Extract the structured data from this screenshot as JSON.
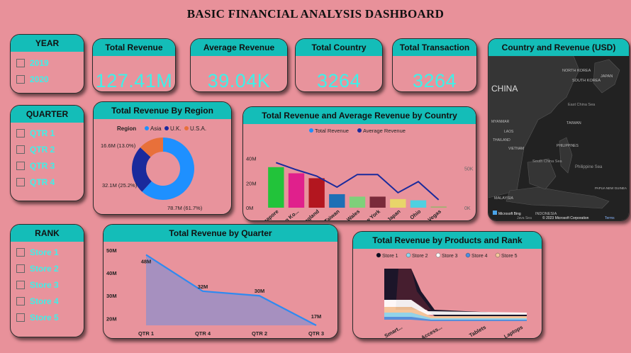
{
  "dashboard_title": "BASIC FINANCIAL  ANALYSIS DASHBOARD",
  "slicers": {
    "year": {
      "title": "YEAR",
      "items": [
        "2019",
        "2020"
      ]
    },
    "quarter": {
      "title": "QUARTER",
      "items": [
        "QTR 1",
        "QTR 2",
        "QTR 3",
        "QTR 4"
      ]
    },
    "rank": {
      "title": "RANK",
      "items": [
        "Store 1",
        "Store 2",
        "Store 3",
        "Store 4",
        "Store 5"
      ]
    }
  },
  "kpis": [
    {
      "title": "Total Revenue",
      "value": "127.41M"
    },
    {
      "title": "Average Revenue",
      "value": "39.04K"
    },
    {
      "title": "Total Country",
      "value": "3264"
    },
    {
      "title": "Total Transaction",
      "value": "3264"
    }
  ],
  "map": {
    "title": "Country and Revenue (USD)",
    "labels": [
      "CHINA",
      "NORTH KOREA",
      "SOUTH KOREA",
      "JAPAN",
      "TAIWAN",
      "East China Sea",
      "South China Sea",
      "Philippine Sea",
      "MALAYSIA",
      "INDONESIA",
      "Java Sea",
      "THAILAND",
      "VIETNAM",
      "LAOS",
      "MYANMAR",
      "PHILIPPINES",
      "PAPUA NEW GUINEA"
    ],
    "bing": "Microsoft Bing",
    "copyright": "© 2023 Microsoft Corporation",
    "terms": "Terms"
  },
  "region_chart": {
    "title": "Total Revenue By Region",
    "legend_title": "Region",
    "colors": {
      "Asia": "#1e90ff",
      "U.K.": "#1a2a9c",
      "U.S.A.": "#e8703a"
    },
    "chart_data": {
      "type": "pie",
      "categories": [
        "Asia",
        "U.K.",
        "U.S.A."
      ],
      "values": [
        78.7,
        32.1,
        16.6
      ],
      "percent": [
        61.7,
        25.2,
        13.0
      ],
      "labels": [
        "78.7M (61.7%)",
        "32.1M (25.2%)",
        "16.6M (13.0%)"
      ]
    }
  },
  "country_chart": {
    "title": "Total Revenue and Average Revenue by Country",
    "legend": [
      "Total Revenue",
      "Average Revenue"
    ],
    "legend_colors": [
      "#1e90ff",
      "#1a2a9c"
    ],
    "y_ticks": [
      "0M",
      "20M",
      "40M"
    ],
    "y2_ticks": [
      "0K",
      "50K"
    ],
    "bar_colors": [
      "#22c33a",
      "#e0208c",
      "#b3161f",
      "#1e6fb5",
      "#7fd07a",
      "#7a2a3a",
      "#e8d56a",
      "#4fd0e0",
      "#a0b070"
    ],
    "chart_data": {
      "type": "bar",
      "categories": [
        "Singapore",
        "Hong Ko...",
        "England",
        "Taiwan",
        "Wales",
        "New York",
        "Japan",
        "Ohio",
        "Las Vegas"
      ],
      "series": [
        {
          "name": "Total Revenue",
          "values": [
            33,
            28,
            24,
            11,
            9,
            9,
            7,
            6,
            1
          ]
        },
        {
          "name": "Average Revenue",
          "values": [
            57,
            48,
            40,
            26,
            42,
            42,
            19,
            33,
            10
          ]
        }
      ],
      "ylim": [
        0,
        45
      ],
      "y2lim": [
        0,
        70
      ]
    }
  },
  "quarter_chart": {
    "title": "Total Revenue by Quarter",
    "y_ticks": [
      "20M",
      "30M",
      "40M",
      "50M"
    ],
    "chart_data": {
      "type": "area",
      "categories": [
        "QTR 1",
        "QTR 4",
        "QTR 2",
        "QTR 3"
      ],
      "values": [
        48,
        32,
        30,
        17
      ],
      "labels": [
        "48M",
        "32M",
        "30M",
        "17M"
      ],
      "ylim": [
        17,
        50
      ]
    }
  },
  "products_chart": {
    "title": "Total Revenue by Products and Rank",
    "legend": [
      "Store 1",
      "Store 2",
      "Store 3",
      "Store 4",
      "Store 5"
    ],
    "legend_colors": [
      "#0a0a20",
      "#8ad8f0",
      "#ffffff",
      "#4a8de0",
      "#f5c89a"
    ],
    "chart_data": {
      "type": "area",
      "categories": [
        "Smart...",
        "Access...",
        "Tablets",
        "Laptops"
      ]
    }
  }
}
